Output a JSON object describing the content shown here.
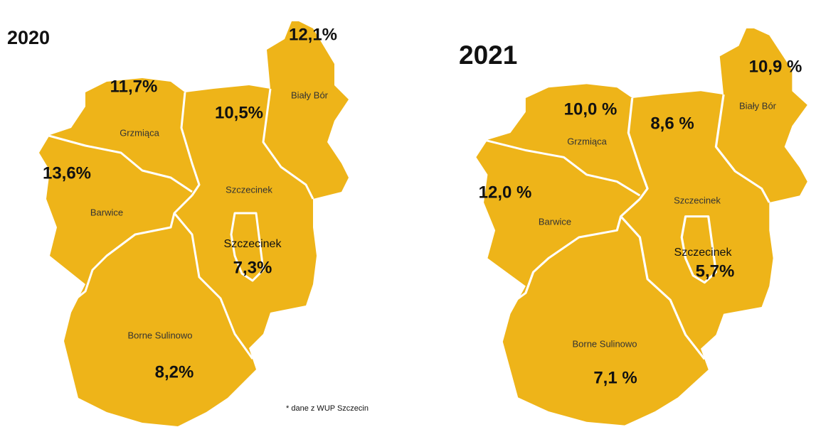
{
  "maps": [
    {
      "title": "2020",
      "regions": [
        {
          "name": "Biały Bór",
          "label": "12,1%"
        },
        {
          "name": "Grzmiąca",
          "label": "11,7%"
        },
        {
          "name": "Szczecinek",
          "label": "10,5%"
        },
        {
          "name": "Barwice",
          "label": "13,6%"
        },
        {
          "name": "Szczecinek",
          "label": "7,3%"
        },
        {
          "name": "Borne Sulinowo",
          "label": "8,2%"
        }
      ],
      "note": "* dane z WUP Szczecin"
    },
    {
      "title": "2021",
      "regions": [
        {
          "name": "Biały Bór",
          "label": "10,9 %"
        },
        {
          "name": "Grzmiąca",
          "label": "10,0 %"
        },
        {
          "name": "Szczecinek",
          "label": "8,6 %"
        },
        {
          "name": "Barwice",
          "label": "12,0 %"
        },
        {
          "name": "Szczecinek",
          "label": "5,7%"
        },
        {
          "name": "Borne Sulinowo",
          "label": "7,1 %"
        }
      ]
    }
  ]
}
